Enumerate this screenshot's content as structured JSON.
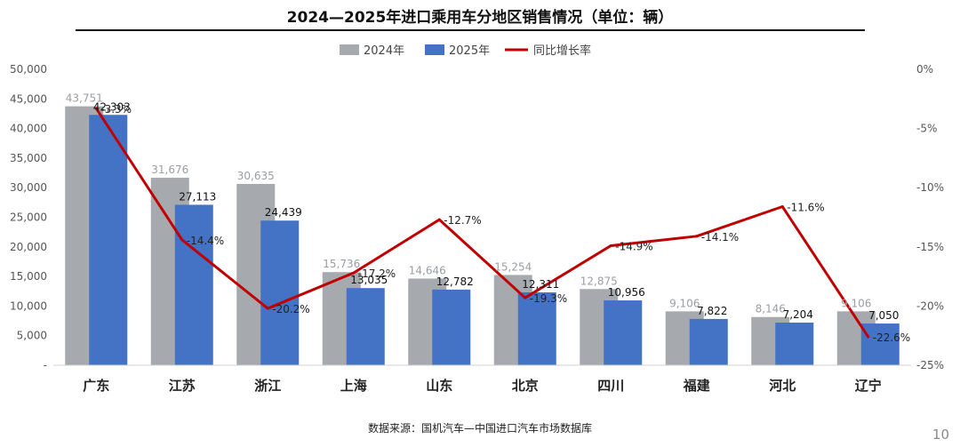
{
  "title": "2024—2025年进口乘用车分地区销售情况（单位：辆）",
  "source": "数据来源：国机汽车—中国进口汽车市场数据库",
  "page_number": "10",
  "colors": {
    "series_2024": "#a6aaae",
    "series_2025": "#4472c4",
    "growth": "#c00000"
  },
  "chart_data": {
    "type": "bar",
    "title": "2024—2025年进口乘用车分地区销售情况（单位：辆）",
    "categories": [
      "广东",
      "江苏",
      "浙江",
      "上海",
      "山东",
      "北京",
      "四川",
      "福建",
      "河北",
      "辽宁"
    ],
    "series": [
      {
        "name": "2024年",
        "type": "bar",
        "axis": "left",
        "color": "#a6aaae",
        "values": [
          43751,
          31676,
          30635,
          15736,
          14646,
          15254,
          12875,
          9106,
          8146,
          9106
        ],
        "labels": [
          "43,751",
          "31,676",
          "30,635",
          "15,736",
          "14,646",
          "15,254",
          "12,875",
          "9,106",
          "8,146",
          "9,106"
        ]
      },
      {
        "name": "2025年",
        "type": "bar",
        "axis": "left",
        "color": "#4472c4",
        "values": [
          42303,
          27113,
          24439,
          13035,
          12782,
          12311,
          10956,
          7822,
          7204,
          7050
        ],
        "labels": [
          "42,303",
          "27,113",
          "24,439",
          "13,035",
          "12,782",
          "12,311",
          "10,956",
          "7,822",
          "7,204",
          "7,050"
        ]
      },
      {
        "name": "同比增长率",
        "type": "line",
        "axis": "right",
        "color": "#c00000",
        "values": [
          -3.3,
          -14.4,
          -20.2,
          -17.2,
          -12.7,
          -19.3,
          -14.9,
          -14.1,
          -11.6,
          -22.6
        ],
        "labels": [
          "-3.3%",
          "-14.4%",
          "-20.2%",
          "-17.2%",
          "-12.7%",
          "-19.3%",
          "-14.9%",
          "-14.1%",
          "-11.6%",
          "-22.6%"
        ]
      }
    ],
    "y_left": {
      "ylim": [
        0,
        50000
      ],
      "ticks": [
        "-",
        "5,000",
        "10,000",
        "15,000",
        "20,000",
        "25,000",
        "30,000",
        "35,000",
        "40,000",
        "45,000",
        "50,000"
      ]
    },
    "y_right": {
      "ylim": [
        -25,
        0
      ],
      "ticks": [
        "0%",
        "-5%",
        "-10%",
        "-15%",
        "-20%",
        "-25%"
      ]
    },
    "legend_position": "top-center",
    "grid": false
  }
}
